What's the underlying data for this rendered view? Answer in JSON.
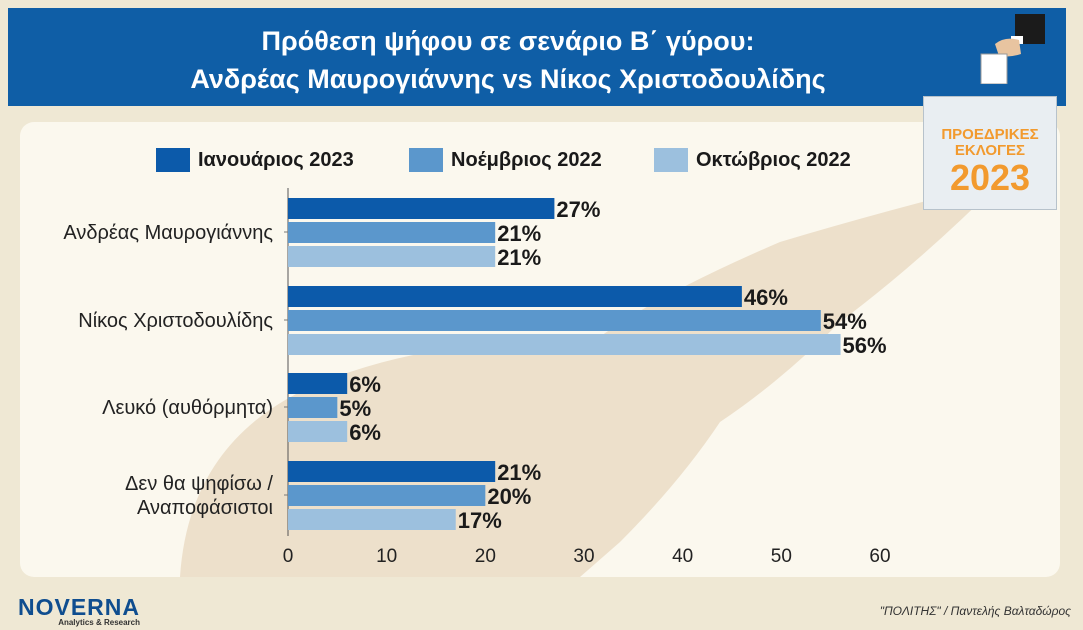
{
  "header": {
    "title_line1": "Πρόθεση ψήφου σε σενάριο Β΄ γύρου:",
    "title_line2": "Ανδρέας Μαυρογιάννης vs Νίκος Χριστοδουλίδης"
  },
  "badge": {
    "line1": "ΠΡΟΕΔΡΙΚΕΣ",
    "line2": "ΕΚΛΟΓΕΣ",
    "line3": "2023"
  },
  "footer": {
    "logo_name": "NOVERNA",
    "logo_sub": "Analytics & Research",
    "credit": "\"ΠΟΛΙΤΗΣ\" / Παντελής Βαλταδώρος"
  },
  "chart_data": {
    "type": "bar",
    "orientation": "horizontal",
    "categories": [
      [
        "Ανδρέας Μαυρογιάννης"
      ],
      [
        "Νίκος Χριστοδουλίδης"
      ],
      [
        "Λευκό (αυθόρμητα)"
      ],
      [
        "Δεν θα ψηφίσω /",
        "Αναποφάσιστοι"
      ]
    ],
    "series": [
      {
        "name": "Ιανουάριος 2023",
        "color": "#0c5aaa",
        "values": [
          27,
          46,
          6,
          21
        ]
      },
      {
        "name": "Νοέμβριος 2022",
        "color": "#5b97cc",
        "values": [
          21,
          54,
          5,
          20
        ]
      },
      {
        "name": "Οκτώβριος 2022",
        "color": "#9cc0de",
        "values": [
          21,
          56,
          6,
          17
        ]
      }
    ],
    "value_suffix": "%",
    "xlim": [
      0,
      60
    ],
    "xticks": [
      0,
      10,
      20,
      30,
      40,
      50,
      60
    ],
    "legend_position": "top",
    "grid": false
  }
}
